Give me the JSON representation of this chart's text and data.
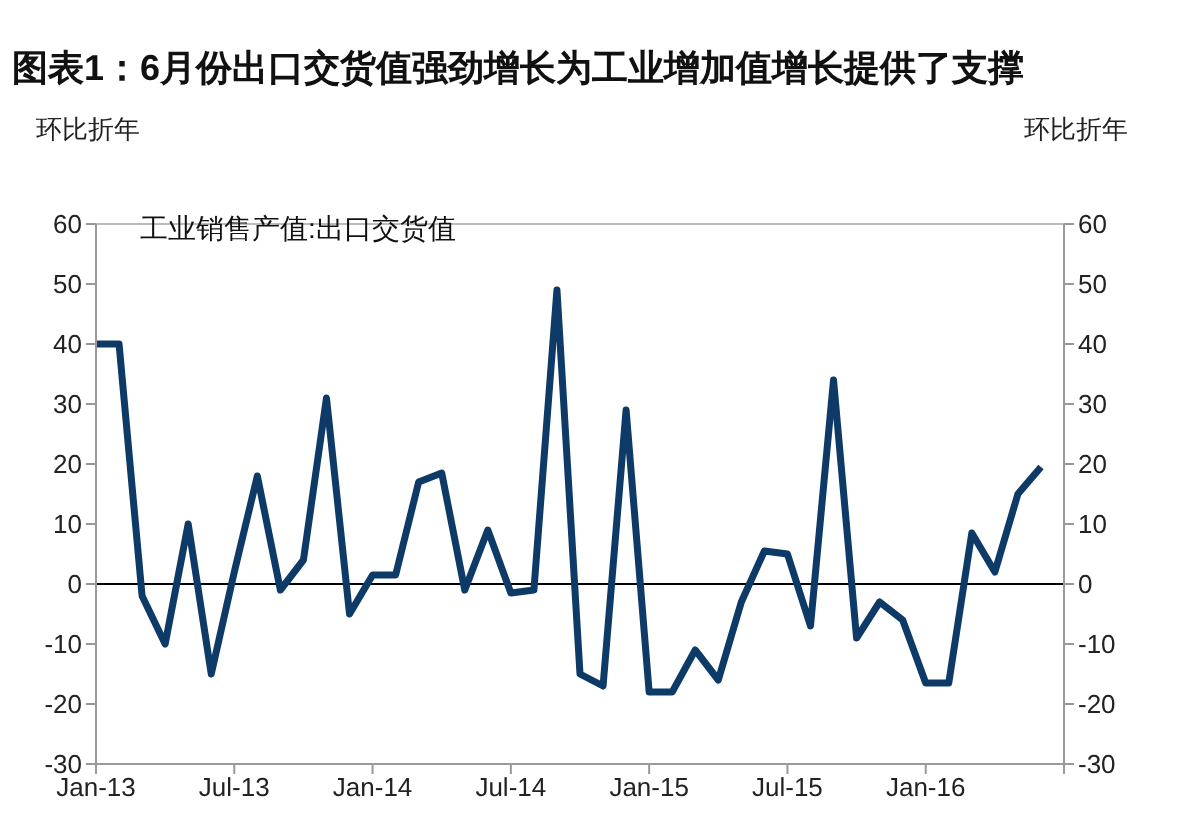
{
  "chart_data": {
    "type": "line",
    "title": "图表1：6月份出口交货值强劲增长为工业增加值增长提供了支撑",
    "ylabel": "环比折年",
    "y2label": "环比折年",
    "x": [
      "2013-01",
      "2013-02",
      "2013-03",
      "2013-04",
      "2013-05",
      "2013-06",
      "2013-07",
      "2013-08",
      "2013-09",
      "2013-10",
      "2013-11",
      "2013-12",
      "2014-01",
      "2014-02",
      "2014-03",
      "2014-04",
      "2014-05",
      "2014-06",
      "2014-07",
      "2014-08",
      "2014-09",
      "2014-10",
      "2014-11",
      "2014-12",
      "2015-01",
      "2015-02",
      "2015-03",
      "2015-04",
      "2015-05",
      "2015-06",
      "2015-07",
      "2015-08",
      "2015-09",
      "2015-10",
      "2015-11",
      "2015-12",
      "2016-01",
      "2016-02",
      "2016-03",
      "2016-04",
      "2016-05",
      "2016-06"
    ],
    "series": [
      {
        "name": "工业销售产值:出口交货值",
        "color": "#0d3a66",
        "values": [
          40,
          40,
          -2,
          -10,
          10,
          -15,
          2,
          18,
          -1,
          4,
          31,
          -5,
          1.5,
          1.5,
          17,
          18.5,
          -1,
          9,
          -1.5,
          -1,
          49,
          -15,
          -17,
          29,
          -18,
          -18,
          -11,
          -16,
          -3,
          5.5,
          5,
          -7,
          34,
          -9,
          -3,
          -6,
          -16.5,
          -16.5,
          8.5,
          2,
          15,
          19.5
        ]
      }
    ],
    "xlim": [
      "2013-01",
      "2016-07"
    ],
    "xticks": [
      {
        "value": "2013-01",
        "label": "Jan-13"
      },
      {
        "value": "2013-07",
        "label": "Jul-13"
      },
      {
        "value": "2014-01",
        "label": "Jan-14"
      },
      {
        "value": "2014-07",
        "label": "Jul-14"
      },
      {
        "value": "2015-01",
        "label": "Jan-15"
      },
      {
        "value": "2015-07",
        "label": "Jul-15"
      },
      {
        "value": "2016-01",
        "label": "Jan-16"
      },
      {
        "value": "2016-07",
        "label": null
      }
    ],
    "ylim": [
      -30,
      60
    ],
    "yticks": [
      -30,
      -20,
      -10,
      0,
      10,
      20,
      30,
      40,
      50,
      60
    ],
    "y2lim": [
      -30,
      60
    ],
    "y2ticks": [
      -30,
      -20,
      -10,
      0,
      10,
      20,
      30,
      40,
      50,
      60
    ],
    "ref_lines": [
      {
        "axis": "y",
        "value": 0,
        "color": "#000000"
      }
    ],
    "grid": false,
    "legend": "top left",
    "marker": "none",
    "line_style": "solid"
  }
}
